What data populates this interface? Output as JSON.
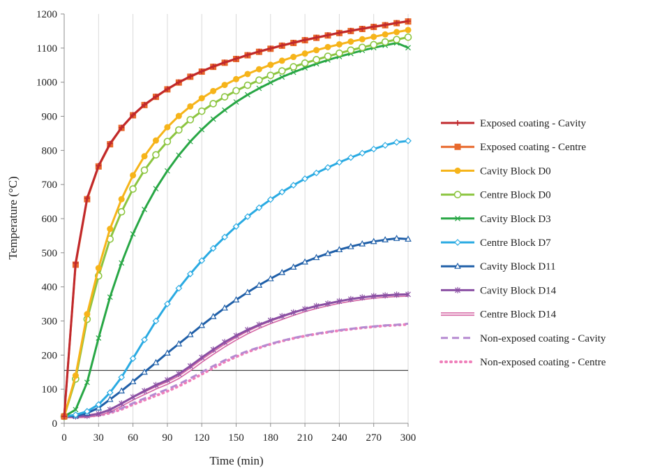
{
  "chart_data": {
    "type": "line",
    "title": "",
    "xlabel": "Time (min)",
    "ylabel": "Temperature (°C)",
    "xlim": [
      0,
      300
    ],
    "ylim": [
      0,
      1200
    ],
    "x_ticks": [
      0,
      30,
      60,
      90,
      120,
      150,
      180,
      210,
      240,
      270,
      300
    ],
    "y_ticks": [
      0,
      100,
      200,
      300,
      400,
      500,
      600,
      700,
      800,
      900,
      1000,
      1100,
      1200
    ],
    "grid": "vertical",
    "legend_position": "right",
    "reference_line": {
      "y": 155,
      "x_range": [
        0,
        300
      ],
      "color": "#333333"
    },
    "x": [
      0,
      10,
      20,
      30,
      40,
      50,
      60,
      70,
      80,
      90,
      100,
      110,
      120,
      130,
      140,
      150,
      160,
      170,
      180,
      190,
      200,
      210,
      220,
      230,
      240,
      250,
      260,
      270,
      280,
      290,
      300
    ],
    "series": [
      {
        "name": "Exposed coating - Cavity",
        "color": "#c0282c",
        "marker": "plus",
        "dash": "solid",
        "values": [
          20,
          470,
          660,
          755,
          820,
          867,
          904,
          934,
          958,
          980,
          1000,
          1017,
          1032,
          1046,
          1058,
          1069,
          1080,
          1090,
          1099,
          1108,
          1116,
          1124,
          1131,
          1138,
          1145,
          1151,
          1157,
          1163,
          1168,
          1174,
          1179
        ]
      },
      {
        "name": "Exposed coating - Centre",
        "color": "#e8692c",
        "marker": "square",
        "dash": "solid",
        "values": [
          20,
          465,
          657,
          753,
          818,
          866,
          903,
          933,
          957,
          979,
          999,
          1016,
          1031,
          1045,
          1057,
          1068,
          1079,
          1089,
          1098,
          1107,
          1115,
          1123,
          1130,
          1137,
          1144,
          1150,
          1156,
          1162,
          1167,
          1173,
          1178
        ]
      },
      {
        "name": "Cavity Block D0",
        "color": "#f6b41a",
        "marker": "circle",
        "dash": "solid",
        "values": [
          20,
          140,
          320,
          455,
          570,
          657,
          727,
          783,
          829,
          868,
          901,
          929,
          953,
          974,
          992,
          1009,
          1024,
          1038,
          1051,
          1063,
          1074,
          1084,
          1094,
          1103,
          1111,
          1119,
          1126,
          1133,
          1140,
          1147,
          1153
        ]
      },
      {
        "name": "Centre Block D0",
        "color": "#8cc540",
        "marker": "open-circle",
        "dash": "solid",
        "values": [
          20,
          130,
          305,
          432,
          540,
          620,
          687,
          742,
          787,
          826,
          860,
          890,
          915,
          937,
          957,
          975,
          991,
          1006,
          1020,
          1033,
          1045,
          1056,
          1066,
          1076,
          1085,
          1094,
          1102,
          1110,
          1118,
          1125,
          1132
        ]
      },
      {
        "name": "Cavity Block D3",
        "color": "#28a745",
        "marker": "x",
        "dash": "solid",
        "values": [
          20,
          40,
          120,
          250,
          370,
          470,
          555,
          627,
          688,
          740,
          786,
          826,
          861,
          892,
          918,
          942,
          963,
          982,
          999,
          1015,
          1029,
          1042,
          1054,
          1065,
          1075,
          1084,
          1093,
          1101,
          1108,
          1115,
          1101
        ]
      },
      {
        "name": "Centre Block D7",
        "color": "#29aae2",
        "marker": "open-diamond",
        "dash": "solid",
        "values": [
          20,
          25,
          35,
          55,
          90,
          135,
          190,
          245,
          300,
          350,
          396,
          438,
          477,
          513,
          546,
          577,
          606,
          632,
          656,
          678,
          698,
          717,
          734,
          750,
          765,
          779,
          792,
          804,
          815,
          824,
          828
        ]
      },
      {
        "name": "Cavity Block D11",
        "color": "#1f5fa8",
        "marker": "open-triangle",
        "dash": "solid",
        "values": [
          20,
          22,
          30,
          45,
          70,
          95,
          122,
          150,
          178,
          206,
          233,
          260,
          287,
          313,
          338,
          362,
          384,
          405,
          424,
          442,
          458,
          473,
          486,
          498,
          509,
          518,
          526,
          533,
          538,
          542,
          540
        ]
      },
      {
        "name": "Cavity Block D14",
        "color": "#8a4fa3",
        "marker": "star",
        "dash": "solid",
        "values": [
          20,
          20,
          22,
          28,
          40,
          58,
          77,
          95,
          112,
          127,
          145,
          168,
          193,
          216,
          238,
          257,
          274,
          289,
          302,
          314,
          325,
          335,
          344,
          351,
          358,
          364,
          369,
          373,
          375,
          377,
          378
        ]
      },
      {
        "name": "Centre Block D14",
        "color": "#d66aa6",
        "marker": "double-line",
        "dash": "solid",
        "values": [
          20,
          20,
          21,
          26,
          37,
          54,
          72,
          88,
          104,
          118,
          135,
          158,
          183,
          206,
          228,
          248,
          266,
          282,
          296,
          308,
          320,
          331,
          340,
          348,
          355,
          361,
          366,
          370,
          373,
          375,
          376
        ]
      },
      {
        "name": "Non-exposed coating - Cavity",
        "color": "#b58ad1",
        "marker": "none",
        "dash": "dash",
        "values": [
          20,
          20,
          21,
          24,
          32,
          44,
          59,
          73,
          87,
          100,
          115,
          132,
          150,
          168,
          185,
          199,
          212,
          223,
          233,
          242,
          250,
          257,
          263,
          268,
          273,
          277,
          281,
          284,
          287,
          289,
          292
        ]
      },
      {
        "name": "Non-exposed coating - Centre",
        "color": "#ef7fba",
        "marker": "none",
        "dash": "dot",
        "values": [
          20,
          20,
          21,
          23,
          30,
          41,
          55,
          68,
          81,
          94,
          109,
          126,
          144,
          162,
          180,
          195,
          209,
          221,
          232,
          241,
          249,
          256,
          262,
          267,
          272,
          276,
          280,
          283,
          286,
          288,
          290
        ]
      }
    ]
  }
}
